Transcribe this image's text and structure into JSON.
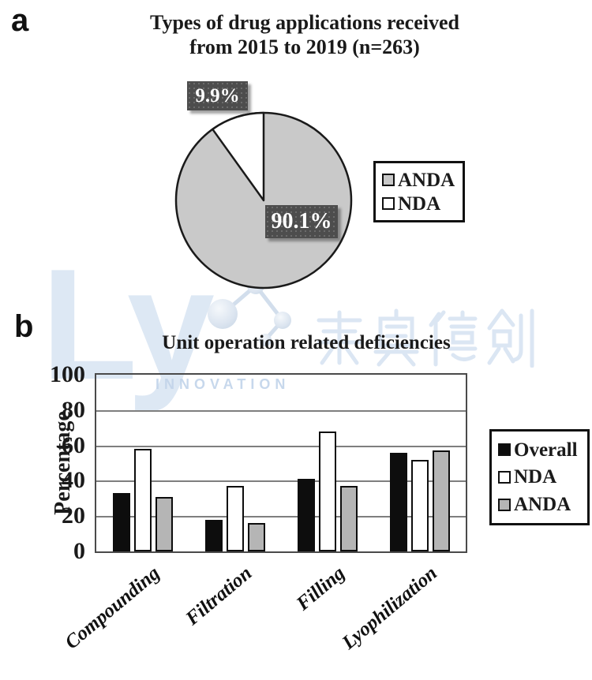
{
  "panels": {
    "a": "a",
    "b": "b"
  },
  "watermark": {
    "logo": "Ly",
    "cjk": "莱奥德创",
    "subtext": "INNOVATION",
    "color": "#c8d9ee"
  },
  "pie": {
    "title_line1": "Types of drug applications received",
    "title_line2": "from 2015 to 2019 (n=263)"
  },
  "chart_data": [
    {
      "type": "pie",
      "title": "Types of drug applications received from 2015 to 2019 (n=263)",
      "n_total": 263,
      "labels": [
        "ANDA",
        "NDA"
      ],
      "values": [
        90.1,
        9.9
      ],
      "unit": "%",
      "data_labels": [
        "90.1%",
        "9.9%"
      ],
      "colors": [
        "#c9c9c9",
        "#ffffff"
      ],
      "legend_position": "right",
      "start_angle_deg": 0,
      "nda_slice_direction": "counterclockwise-from-12-oclock"
    },
    {
      "type": "bar",
      "title": "Unit operation related deficiencies",
      "categories": [
        "Compounding",
        "Filtration",
        "Filling",
        "Lyophilization"
      ],
      "series": [
        {
          "name": "Overall",
          "color": "#0d0d0d",
          "values": [
            33,
            18,
            41,
            56
          ]
        },
        {
          "name": "NDA",
          "color": "#ffffff",
          "values": [
            58,
            37,
            68,
            52
          ]
        },
        {
          "name": "ANDA",
          "color": "#b5b5b5",
          "values": [
            31,
            16,
            37,
            57
          ]
        }
      ],
      "xlabel": "",
      "ylabel": "Percentage",
      "ylim": [
        0,
        100
      ],
      "ytick_step": 20,
      "grid": true,
      "legend_position": "right"
    }
  ]
}
